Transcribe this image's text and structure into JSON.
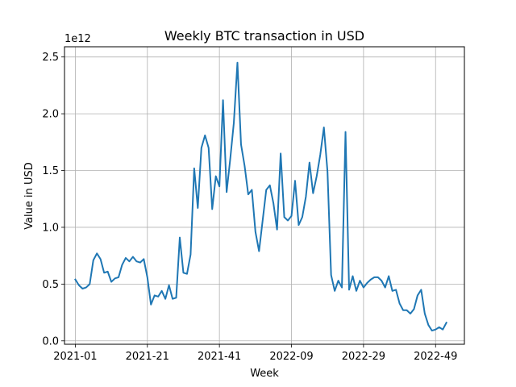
{
  "chart_data": {
    "type": "line",
    "title": "Weekly BTC transaction in USD",
    "xlabel": "Week",
    "ylabel": "Value in USD",
    "y_offset_text": "1e12",
    "y_scale": 1000000000000.0,
    "grid": true,
    "ylim": [
      -0.03,
      2.59
    ],
    "xlim": [
      -3,
      108
    ],
    "x_ticks": [
      {
        "pos": 0,
        "label": "2021-01"
      },
      {
        "pos": 20,
        "label": "2021-21"
      },
      {
        "pos": 40,
        "label": "2021-41"
      },
      {
        "pos": 60,
        "label": "2022-09"
      },
      {
        "pos": 80,
        "label": "2022-29"
      },
      {
        "pos": 100,
        "label": "2022-49"
      }
    ],
    "y_ticks": [
      {
        "pos": 0.0,
        "label": "0.0"
      },
      {
        "pos": 0.5,
        "label": "0.5"
      },
      {
        "pos": 1.0,
        "label": "1.0"
      },
      {
        "pos": 1.5,
        "label": "1.5"
      },
      {
        "pos": 2.0,
        "label": "2.0"
      },
      {
        "pos": 2.5,
        "label": "2.5"
      }
    ],
    "series": [
      {
        "color": "#1f77b4",
        "x_start": 0,
        "values": [
          0.54,
          0.49,
          0.46,
          0.47,
          0.5,
          0.71,
          0.77,
          0.72,
          0.6,
          0.61,
          0.52,
          0.55,
          0.56,
          0.67,
          0.73,
          0.7,
          0.74,
          0.7,
          0.69,
          0.72,
          0.56,
          0.32,
          0.4,
          0.39,
          0.44,
          0.37,
          0.49,
          0.37,
          0.38,
          0.91,
          0.6,
          0.59,
          0.76,
          1.52,
          1.17,
          1.7,
          1.81,
          1.7,
          1.16,
          1.45,
          1.36,
          2.12,
          1.31,
          1.6,
          1.92,
          2.45,
          1.73,
          1.54,
          1.29,
          1.33,
          0.96,
          0.79,
          1.06,
          1.33,
          1.37,
          1.21,
          0.98,
          1.65,
          1.09,
          1.06,
          1.1,
          1.41,
          1.02,
          1.09,
          1.27,
          1.57,
          1.3,
          1.45,
          1.64,
          1.88,
          1.49,
          0.58,
          0.44,
          0.53,
          0.47,
          1.84,
          0.45,
          0.57,
          0.44,
          0.53,
          0.47,
          0.51,
          0.54,
          0.56,
          0.56,
          0.53,
          0.47,
          0.57,
          0.44,
          0.45,
          0.33,
          0.27,
          0.27,
          0.24,
          0.28,
          0.4,
          0.45,
          0.24,
          0.14,
          0.09,
          0.1,
          0.12,
          0.1,
          0.16
        ]
      }
    ]
  }
}
